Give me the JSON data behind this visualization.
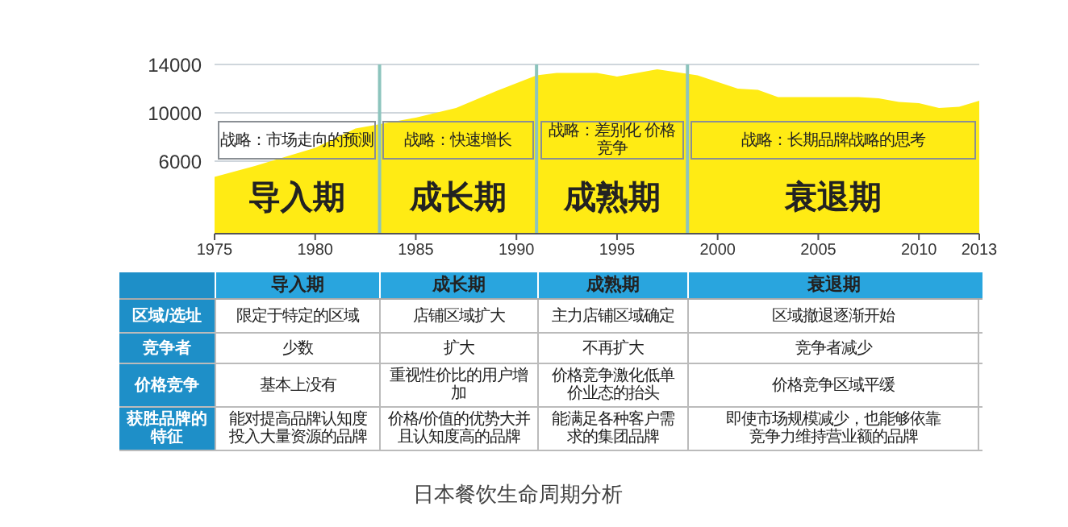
{
  "chart_data": {
    "type": "area",
    "color": "#ffeb14",
    "x": [
      1975,
      1977,
      1980,
      1982,
      1985,
      1987,
      1989,
      1991,
      1992,
      1994,
      1995,
      1997,
      1999,
      2001,
      2002,
      2003,
      2005,
      2007,
      2008,
      2009,
      2010,
      2011,
      2012,
      2013
    ],
    "values": [
      4700,
      5600,
      7100,
      8700,
      9600,
      10400,
      11800,
      13100,
      13300,
      13300,
      13000,
      13600,
      13100,
      12000,
      11900,
      11300,
      11300,
      11300,
      11200,
      10900,
      10800,
      10400,
      10500,
      11000
    ],
    "xlim": [
      1975,
      2013
    ],
    "xticks": [
      1975,
      1980,
      1985,
      1990,
      1995,
      2000,
      2005,
      2010,
      2013
    ],
    "ylim": [
      0,
      14000
    ],
    "yticks": [
      6000,
      10000,
      14000
    ],
    "grid": "y",
    "ref_lines": [
      {
        "axis": "x",
        "value": 1983.2,
        "color": "#8cc4bd"
      },
      {
        "axis": "x",
        "value": 1991,
        "color": "#8cc4bd"
      },
      {
        "axis": "x",
        "value": 1998.5,
        "color": "#8cc4bd"
      }
    ],
    "annotations": [
      "战略：市场走向的预测",
      "战略：快速增长",
      "战略：差别化 价格竞争",
      "战略：长期品牌战略的思考",
      "导入期",
      "成长期",
      "成熟期",
      "衰退期",
      "导入期",
      "成长期",
      "成熟期",
      "衰退期",
      "区域/选址",
      "限定于特定的区域",
      "店铺区域扩大",
      "主力店铺区域确定",
      "区域撤退逐渐开始",
      "竞争者",
      "少数",
      "扩大",
      "不再扩大",
      "竞争者减少",
      "价格竞争",
      "基本上没有",
      "重视性价比的用户增加",
      "价格竞争激化低单价业态的抬头",
      "价格竞争区域平缓",
      "获胜品牌的特征",
      "能对提高品牌认知度投入大量资源的品牌",
      "价格/价值的优势大并且认知度高的品牌",
      "能满足各种客户需求的集团品牌",
      "即使市场规模减少，也能够依靠竞争力维持营业额的品牌",
      "日本餐饮生命周期分析"
    ]
  }
}
